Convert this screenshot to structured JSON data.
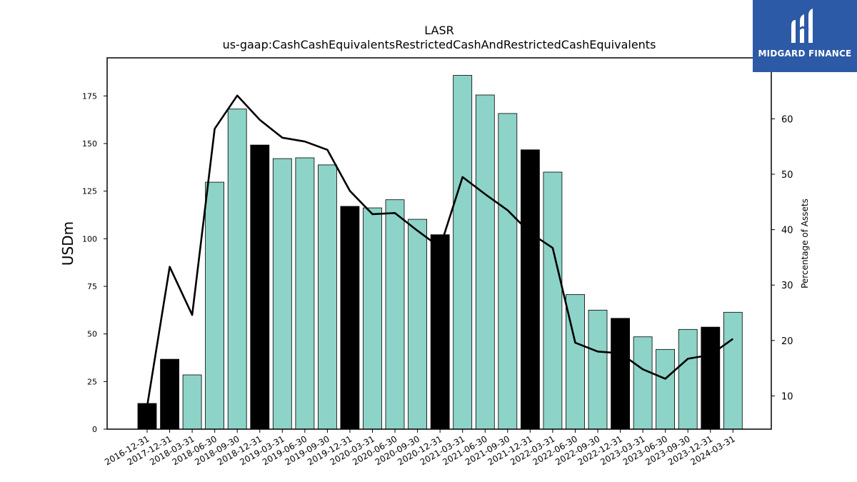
{
  "chart_data": {
    "type": "bar",
    "title": "LASR",
    "subtitle": "us-gaap:CashCashEquivalentsRestrictedCashAndRestrictedCashEquivalents",
    "ylabel": "USDm",
    "ylabel_right": "Percentage of Assets",
    "ylim": [
      0,
      195
    ],
    "ylim_right": [
      4,
      71
    ],
    "y_ticks": [
      0,
      25,
      50,
      75,
      100,
      125,
      150,
      175
    ],
    "y_ticks_right": [
      10,
      20,
      30,
      40,
      50,
      60
    ],
    "grid": false,
    "categories": [
      "2016-12-31",
      "2017-12-31",
      "2018-03-31",
      "2018-06-30",
      "2018-09-30",
      "2018-12-31",
      "2019-03-31",
      "2019-06-30",
      "2019-09-30",
      "2019-12-31",
      "2020-03-31",
      "2020-06-30",
      "2020-09-30",
      "2020-12-31",
      "2021-03-31",
      "2021-06-30",
      "2021-09-30",
      "2021-12-31",
      "2022-03-31",
      "2022-06-30",
      "2022-09-30",
      "2022-12-31",
      "2023-03-31",
      "2023-06-30",
      "2023-09-30",
      "2023-12-31",
      "2024-03-31"
    ],
    "series": [
      {
        "type": "bar",
        "axis": "left",
        "values": [
          13.5,
          36.7,
          28.5,
          129.7,
          168.1,
          149.2,
          142.1,
          142.5,
          138.8,
          117.0,
          116.2,
          120.5,
          110.2,
          102.1,
          185.8,
          175.5,
          165.8,
          146.7,
          135.0,
          70.7,
          62.5,
          58.2,
          48.5,
          41.9,
          52.4,
          53.6,
          61.4
        ]
      },
      {
        "type": "line",
        "axis": "right",
        "values": [
          8.1,
          33.3,
          24.6,
          58.2,
          64.2,
          59.8,
          56.6,
          55.9,
          54.4,
          47.0,
          42.8,
          43.0,
          39.8,
          36.8,
          49.5,
          46.4,
          43.5,
          39.4,
          36.7,
          19.6,
          18.0,
          17.7,
          14.8,
          13.1,
          16.7,
          17.4,
          20.3
        ]
      }
    ],
    "annual_period_ends": [
      "2016-12-31",
      "2017-12-31",
      "2018-12-31",
      "2019-12-31",
      "2020-12-31",
      "2021-12-31",
      "2022-12-31",
      "2023-12-31"
    ],
    "colors": {
      "quarter_bar": "#8dd3c7",
      "annual_bar": "#000000",
      "line": "#000000"
    }
  },
  "logo": {
    "text": "MIDGARD FINANCE",
    "background": "#2d5aa6"
  }
}
